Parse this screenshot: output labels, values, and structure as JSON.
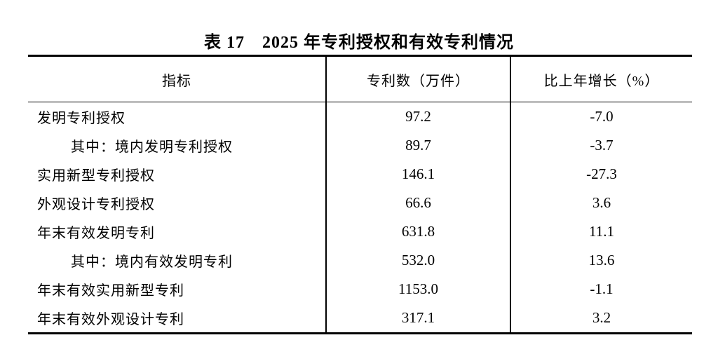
{
  "page": {
    "title": "表 17　2025 年专利授权和有效专利情况"
  },
  "table": {
    "columns": {
      "indicator": "指标",
      "patents": "专利数（万件）",
      "growth": "比上年增长（%）"
    },
    "rows": [
      {
        "indicator": "发明专利授权",
        "patents": "97.2",
        "growth": "-7.0",
        "indent": false
      },
      {
        "indicator": "其中：境内发明专利授权",
        "patents": "89.7",
        "growth": "-3.7",
        "indent": true
      },
      {
        "indicator": "实用新型专利授权",
        "patents": "146.1",
        "growth": "-27.3",
        "indent": false
      },
      {
        "indicator": "外观设计专利授权",
        "patents": "66.6",
        "growth": "3.6",
        "indent": false
      },
      {
        "indicator": "年末有效发明专利",
        "patents": "631.8",
        "growth": "11.1",
        "indent": false
      },
      {
        "indicator": "其中：境内有效发明专利",
        "patents": "532.0",
        "growth": "13.6",
        "indent": true
      },
      {
        "indicator": "年末有效实用新型专利",
        "patents": "1153.0",
        "growth": "-1.1",
        "indent": false
      },
      {
        "indicator": "年末有效外观设计专利",
        "patents": "317.1",
        "growth": "3.2",
        "indent": false
      }
    ],
    "colors": {
      "border": "#000000",
      "text": "#000000",
      "background": "#ffffff"
    }
  }
}
